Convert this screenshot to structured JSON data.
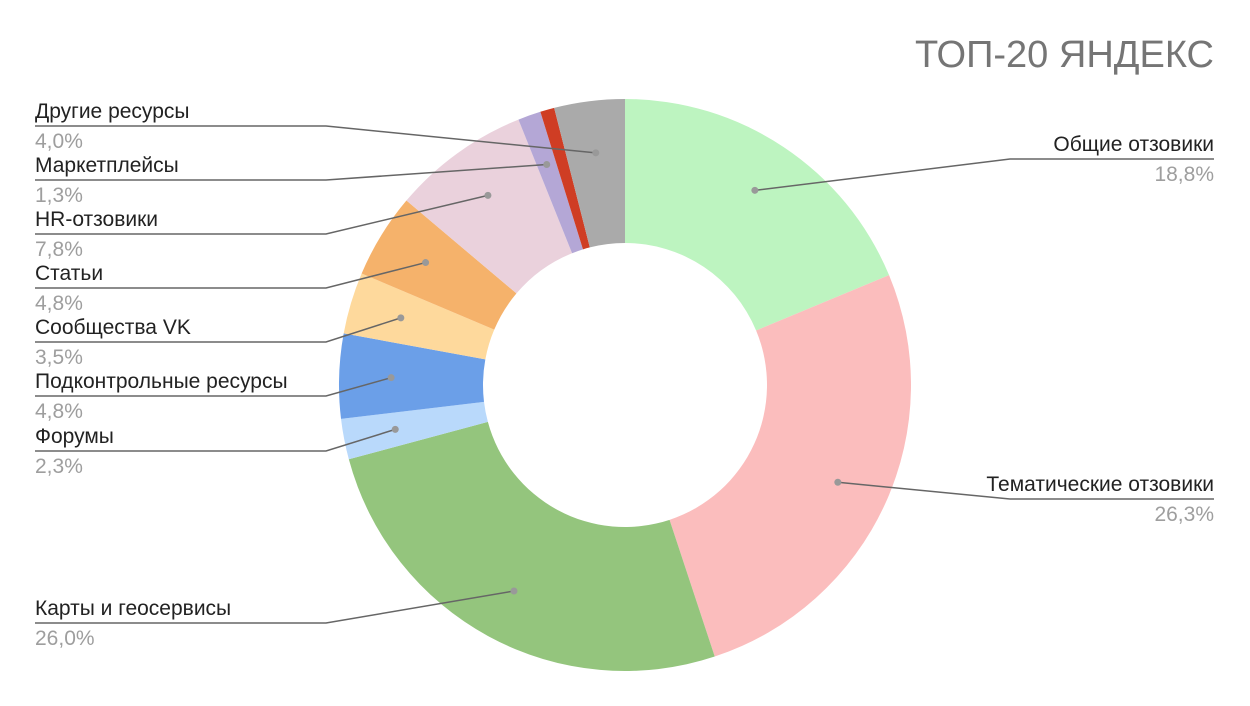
{
  "chart_data": {
    "type": "pie",
    "donut": true,
    "title": "ТОП-20 ЯНДЕКС",
    "legend": "callout-labels",
    "slices": [
      {
        "name": "Общие отзовики",
        "value": 18.8,
        "label": "18,8%",
        "color": "#bdf4c0"
      },
      {
        "name": "Тематические отзовики",
        "value": 26.3,
        "label": "26,3%",
        "color": "#fbbdbd"
      },
      {
        "name": "Карты и геосервисы",
        "value": 26.0,
        "label": "26,0%",
        "color": "#94c57d"
      },
      {
        "name": "Форумы",
        "value": 2.3,
        "label": "2,3%",
        "color": "#b9d9fb"
      },
      {
        "name": "Подконтрольные ресурсы",
        "value": 4.8,
        "label": "4,8%",
        "color": "#6b9fe8"
      },
      {
        "name": "Сообщества VK",
        "value": 3.5,
        "label": "3,5%",
        "color": "#fed99c"
      },
      {
        "name": "Статьи",
        "value": 4.8,
        "label": "4,8%",
        "color": "#f5b26b"
      },
      {
        "name": "HR-отзовики",
        "value": 7.8,
        "label": "7,8%",
        "color": "#ead1dc"
      },
      {
        "name": "Маркетплейсы",
        "value": 1.3,
        "label": "1,3%",
        "color": "#b4a7d6"
      },
      {
        "name": "",
        "value": 0.8,
        "label": "",
        "color": "#cf3d24"
      },
      {
        "name": "Другие ресурсы",
        "value": 4.0,
        "label": "4,0%",
        "color": "#aaaaaa"
      }
    ]
  }
}
